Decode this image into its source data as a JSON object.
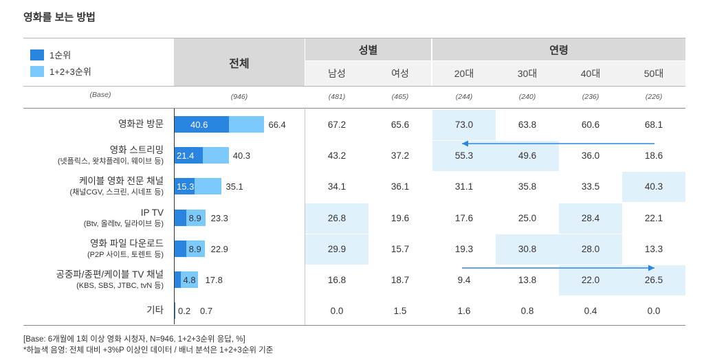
{
  "title": "영화를 보는 방법",
  "legend": [
    {
      "label": "1순위",
      "color": "#2a85e0"
    },
    {
      "label": "1+2+3순위",
      "color": "#7cc9fb"
    }
  ],
  "header": {
    "total": "전체",
    "gender_group": "성별",
    "age_group": "연령",
    "columns": [
      "남성",
      "여성",
      "20대",
      "30대",
      "40대",
      "50대"
    ]
  },
  "base": {
    "label": "(Base)",
    "total": "(946)",
    "columns": [
      "(481)",
      "(465)",
      "(244)",
      "(240)",
      "(236)",
      "(226)"
    ]
  },
  "chart_data": {
    "type": "bar",
    "categories": [
      "영화관 방문",
      "영화 스트리밍",
      "케이블 영화 전문 채널",
      "IP TV",
      "영화 파일 다운로드",
      "공중파/종편/케이블 TV 채널",
      "기타"
    ],
    "sublabels": [
      "",
      "(넷플릭스, 왓챠플레이, 웨이브 등)",
      "(채널CGV, 스크린, 시네프 등)",
      "(Btv, 올레tv, 딜라이브 등)",
      "(P2P 사이트, 토렌트 등)",
      "(KBS, SBS, JTBC, tvN 등)",
      ""
    ],
    "series": [
      {
        "name": "1순위",
        "values": [
          40.6,
          21.4,
          15.3,
          8.9,
          8.9,
          4.8,
          0.2
        ]
      },
      {
        "name": "1+2+3순위",
        "values": [
          66.4,
          40.3,
          35.1,
          23.3,
          22.9,
          17.8,
          0.7
        ]
      }
    ],
    "table": [
      [
        "67.2",
        "65.6",
        "73.0",
        "63.8",
        "60.6",
        "68.1"
      ],
      [
        "43.2",
        "37.2",
        "55.3",
        "49.6",
        "36.0",
        "18.6"
      ],
      [
        "34.1",
        "36.1",
        "31.1",
        "35.8",
        "33.5",
        "40.3"
      ],
      [
        "26.8",
        "19.6",
        "17.6",
        "25.0",
        "28.4",
        "22.1"
      ],
      [
        "29.9",
        "15.7",
        "19.3",
        "30.8",
        "28.0",
        "13.3"
      ],
      [
        "16.8",
        "18.7",
        "9.4",
        "13.8",
        "22.0",
        "26.5"
      ],
      [
        "0.0",
        "1.5",
        "1.6",
        "0.8",
        "0.4",
        "0.0"
      ]
    ],
    "highlights": [
      [
        0,
        2
      ],
      [
        1,
        2
      ],
      [
        1,
        3
      ],
      [
        2,
        5
      ],
      [
        3,
        0
      ],
      [
        3,
        4
      ],
      [
        4,
        0
      ],
      [
        4,
        3
      ],
      [
        4,
        4
      ],
      [
        5,
        4
      ],
      [
        5,
        5
      ]
    ],
    "highlight_color": "#e1f1fc",
    "arrows": [
      {
        "row": 1,
        "direction": "left"
      },
      {
        "row": 5,
        "direction": "right"
      }
    ],
    "arrow_color": "#2a85e0"
  },
  "footnotes": [
    "[Base: 6개월에 1회 이상 영화 시청자, N=946, 1+2+3순위 응답, %]",
    "*하늘색 음영: 전체 대비 +3%P 이상인 데이터 / 배너 분석은 1+2+3순위 기준"
  ]
}
